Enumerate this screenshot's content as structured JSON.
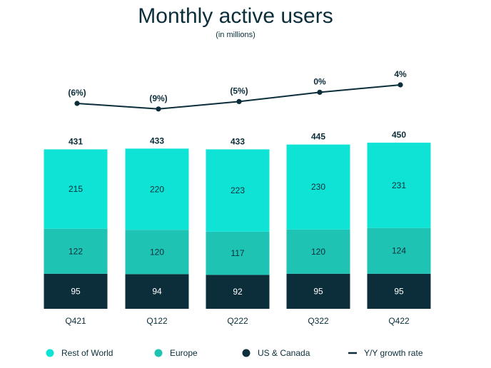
{
  "chart_data": {
    "type": "bar",
    "stacked": true,
    "title": "Monthly active users",
    "subtitle": "(in millions)",
    "categories": [
      "Q421",
      "Q122",
      "Q222",
      "Q322",
      "Q422"
    ],
    "series": [
      {
        "name": "US & Canada",
        "values": [
          95,
          94,
          92,
          95,
          95
        ],
        "color": "#0b2e3a",
        "label_color": "#ffffff"
      },
      {
        "name": "Europe",
        "values": [
          122,
          120,
          117,
          120,
          124
        ],
        "color": "#1ec3b3",
        "label_color": "#0b2e3a"
      },
      {
        "name": "Rest of World",
        "values": [
          215,
          220,
          223,
          230,
          231
        ],
        "color": "#0fe3d6",
        "label_color": "#0b2e3a"
      }
    ],
    "totals": [
      431,
      433,
      433,
      445,
      450
    ],
    "growth": {
      "name": "Y/Y growth rate",
      "values": [
        -6,
        -9,
        -5,
        0,
        4
      ],
      "labels": [
        "(6%)",
        "(9%)",
        "(5%)",
        "0%",
        "4%"
      ],
      "color": "#0b2e3a"
    },
    "legend": {
      "placement": "bottom",
      "items": [
        {
          "name": "Rest of World",
          "color": "#0fe3d6",
          "marker": "circle"
        },
        {
          "name": "Europe",
          "color": "#1ec3b3",
          "marker": "circle"
        },
        {
          "name": "US & Canada",
          "color": "#0b2e3a",
          "marker": "circle"
        },
        {
          "name": "Y/Y growth rate",
          "color": "#0b2e3a",
          "marker": "line"
        }
      ]
    }
  }
}
